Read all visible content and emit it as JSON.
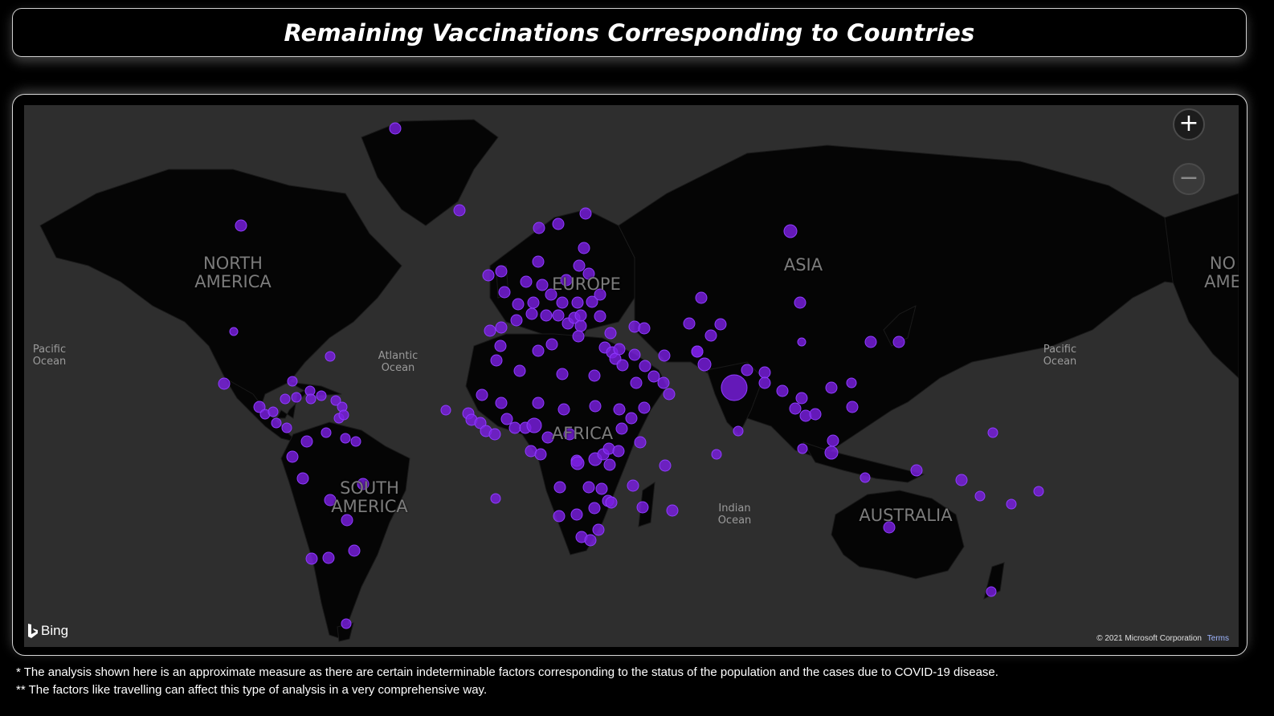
{
  "title": "Remaining Vaccinations Corresponding to Countries",
  "map": {
    "provider": "Bing",
    "copyright": "© 2021 Microsoft Corporation",
    "terms_label": "Terms",
    "zoom_in_label": "+",
    "zoom_out_label": "−",
    "marker_color": "#7a1ee0",
    "land_color": "#050505",
    "water_color": "#2e2e2e",
    "labels": {
      "north_america": "NORTH AMERICA",
      "europe": "EUROPE",
      "asia": "ASIA",
      "africa": "AFRICA",
      "south_america": "SOUTH AMERICA",
      "australia": "AUSTRALIA",
      "north_america_right": "NO AME",
      "pacific_left": "Pacific Ocean",
      "atlantic": "Atlantic Ocean",
      "pacific_right": "Pacific Ocean",
      "indian": "Indian Ocean"
    }
  },
  "footnotes": [
    "* The analysis shown here is an approximate measure as there are certain indeterminable factors corresponding to the status of the population and the cases due to COVID-19 disease.",
    "** The factors like travelling can affect this type of analysis in a very comprehensive way."
  ]
}
